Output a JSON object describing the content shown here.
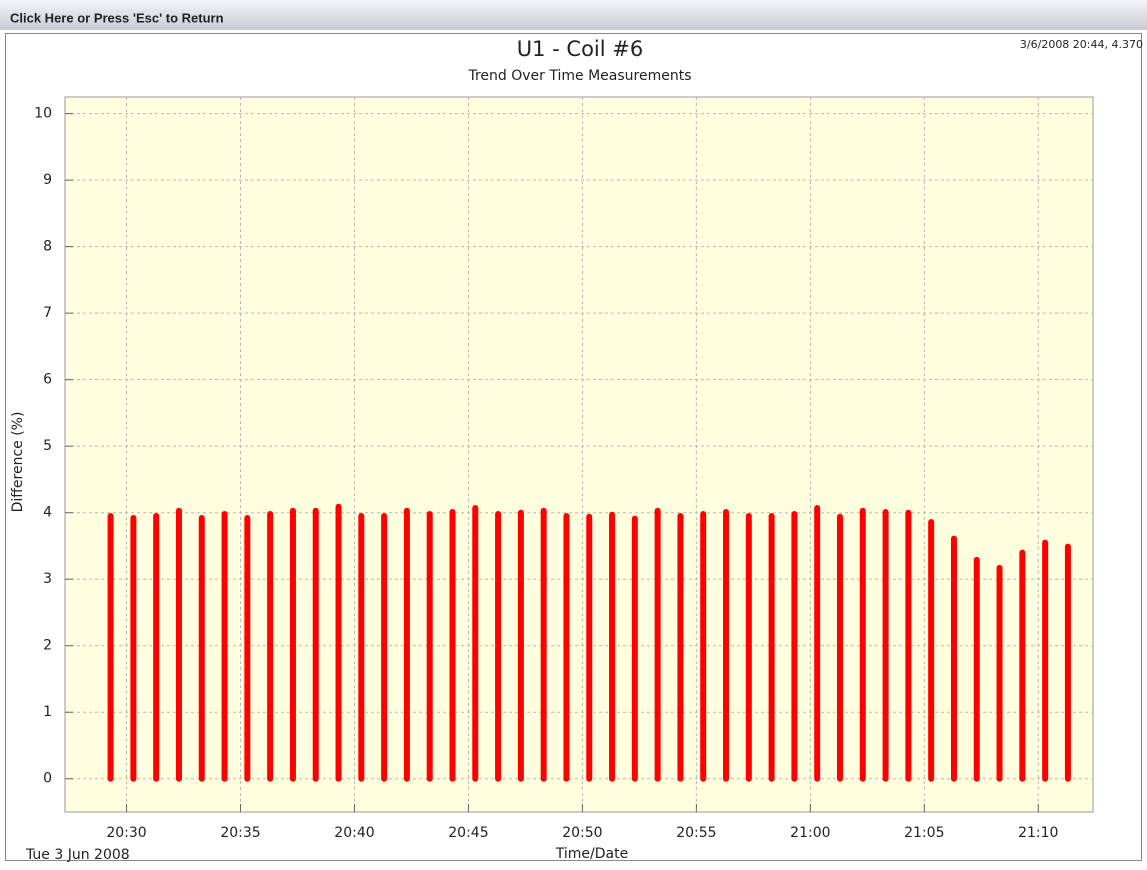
{
  "window": {
    "button": "Click Here or Press 'Esc' to Return"
  },
  "chart_data": {
    "type": "bar",
    "title": "U1 - Coil #6",
    "subtitle": "Trend Over Time Measurements",
    "annotation": "3/6/2008 20:44, 4.370",
    "date_label": "Tue 3 Jun 2008",
    "x_label": "Time/Date",
    "y_label": "Difference (%)",
    "color": "#ff0000",
    "grid": true,
    "x": [
      1229.3,
      1230.3,
      1231.3,
      1232.3,
      1233.3,
      1234.3,
      1235.3,
      1236.3,
      1237.3,
      1238.3,
      1239.3,
      1240.3,
      1241.3,
      1242.3,
      1243.3,
      1244.3,
      1245.3,
      1246.3,
      1247.3,
      1248.3,
      1249.3,
      1250.3,
      1251.3,
      1252.3,
      1253.3,
      1254.3,
      1255.3,
      1256.3,
      1257.3,
      1258.3,
      1259.3,
      1260.3,
      1261.3,
      1262.3,
      1263.3,
      1264.3,
      1265.3,
      1266.3,
      1267.3,
      1268.3,
      1269.3,
      1270.3,
      1271.3
    ],
    "values": [
      3.95,
      3.92,
      3.95,
      4.03,
      3.92,
      3.98,
      3.92,
      3.98,
      4.03,
      4.03,
      4.09,
      3.95,
      3.95,
      4.03,
      3.98,
      4.01,
      4.07,
      3.98,
      4.0,
      4.03,
      3.95,
      3.94,
      3.97,
      3.91,
      4.03,
      3.95,
      3.98,
      4.01,
      3.95,
      3.95,
      3.98,
      4.07,
      3.94,
      4.03,
      4.01,
      4.0,
      3.86,
      3.61,
      3.29,
      3.17,
      3.4,
      3.55,
      3.49
    ],
    "xlim": [
      1227.3,
      1272.4
    ],
    "xticks": [
      {
        "value": 1230,
        "label": "20:30"
      },
      {
        "value": 1235,
        "label": "20:35"
      },
      {
        "value": 1240,
        "label": "20:40"
      },
      {
        "value": 1245,
        "label": "20:45"
      },
      {
        "value": 1250,
        "label": "20:50"
      },
      {
        "value": 1255,
        "label": "20:55"
      },
      {
        "value": 1260,
        "label": "21:00"
      },
      {
        "value": 1265,
        "label": "21:05"
      },
      {
        "value": 1270,
        "label": "21:10"
      }
    ],
    "ylim": [
      -0.5,
      10.25
    ],
    "yticks": [
      0,
      1,
      2,
      3,
      4,
      5,
      6,
      7,
      8,
      9,
      10
    ]
  }
}
